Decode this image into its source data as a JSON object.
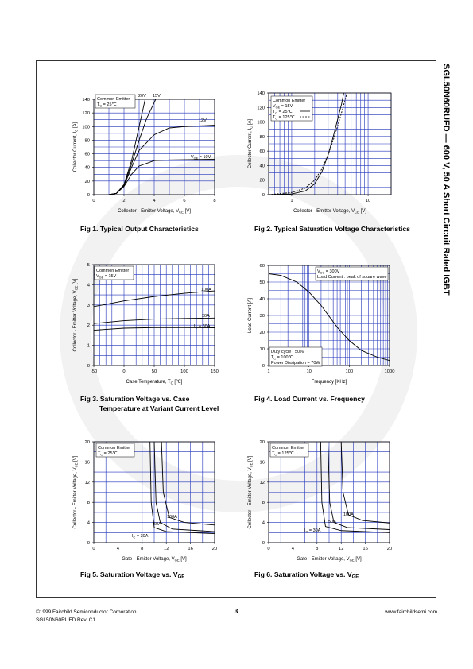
{
  "header": {
    "side_title": "SGL50N60RUFD — 600 V, 50 A Short Circuit Rated IGBT"
  },
  "figures": [
    {
      "caption": [
        "Fig 1. Typical Output Characteristics"
      ],
      "chart": {
        "type": "line",
        "xlabel": [
          "Collector - Emitter Voltage, V",
          "CE",
          " [V]"
        ],
        "ylabel": [
          "Collector Current, I",
          "C",
          " [A]"
        ],
        "xlim": [
          0,
          8
        ],
        "ylim": [
          0,
          140
        ],
        "xticks": [
          0,
          2,
          4,
          6,
          8
        ],
        "yticks": [
          0,
          20,
          40,
          60,
          80,
          100,
          120,
          140
        ],
        "xgrid": [
          0,
          1,
          2,
          3,
          4,
          5,
          6,
          7,
          8
        ],
        "ygrid": [
          0,
          10,
          20,
          30,
          40,
          50,
          60,
          70,
          80,
          90,
          100,
          110,
          120,
          130,
          140
        ],
        "grid_color": "#2233bb",
        "notes": [
          [
            "Common Emitter",
            [
              "T",
              "C",
              " = 25℃"
            ]
          ]
        ],
        "series": [
          {
            "name": "20V",
            "color": "#000000",
            "x": [
              1,
              1.5,
              2,
              2.5,
              3,
              3.4
            ],
            "values": [
              0,
              2,
              15,
              50,
              100,
              140
            ]
          },
          {
            "name": "15V",
            "color": "#000000",
            "x": [
              1,
              1.5,
              2,
              2.5,
              3,
              3.5,
              4.1
            ],
            "values": [
              0,
              2,
              14,
              45,
              80,
              112,
              140
            ]
          },
          {
            "name": "12V",
            "color": "#000000",
            "x": [
              1,
              1.5,
              2,
              2.5,
              3,
              4,
              5,
              6,
              8
            ],
            "values": [
              0,
              2,
              13,
              40,
              65,
              88,
              98,
              100,
              102
            ]
          },
          {
            "name": [
              "V",
              "GE",
              " = 10V"
            ],
            "color": "#000000",
            "x": [
              1,
              1.5,
              2,
              2.5,
              3,
              4,
              5,
              8
            ],
            "values": [
              0,
              2,
              12,
              30,
              42,
              50,
              51,
              52
            ]
          }
        ]
      }
    },
    {
      "caption": [
        "Fig 2. Typical Saturation Voltage Characteristics"
      ],
      "chart": {
        "type": "line",
        "xlog": true,
        "xlabel": [
          "Collector - Emitter Voltage, V",
          "CE",
          " [V]"
        ],
        "ylabel": [
          "Collector Current, I",
          "C",
          " [A]"
        ],
        "xlim": [
          0.5,
          20
        ],
        "ylim": [
          0,
          140
        ],
        "xticks": [
          1,
          10
        ],
        "yticks": [
          0,
          20,
          40,
          60,
          80,
          100,
          120,
          140
        ],
        "xgrid": [
          0.5,
          0.6,
          0.7,
          0.8,
          0.9,
          1,
          2,
          3,
          4,
          5,
          6,
          7,
          8,
          9,
          10,
          20
        ],
        "ygrid": [
          0,
          10,
          20,
          30,
          40,
          50,
          60,
          70,
          80,
          90,
          100,
          110,
          120,
          130,
          140
        ],
        "grid_color": "#2233bb",
        "notes": [
          [
            "Common Emitter",
            [
              "V",
              "GE",
              " = 15V"
            ],
            [
              "T",
              "C",
              " = 25℃"
            ],
            [
              "T",
              "C",
              " = 125℃"
            ]
          ]
        ],
        "series": [
          {
            "color": "#000000",
            "dash": false,
            "x": [
              0.5,
              1,
              1.5,
              2,
              2.5,
              3,
              3.5,
              4,
              4.5,
              4.8
            ],
            "values": [
              0,
              1,
              5,
              15,
              32,
              55,
              80,
              104,
              125,
              140
            ]
          },
          {
            "color": "#000000",
            "dash": true,
            "x": [
              0.5,
              1,
              1.5,
              2,
              2.5,
              3,
              3.5,
              4,
              4.5,
              5.3
            ],
            "values": [
              0,
              3,
              9,
              20,
              36,
              55,
              75,
              95,
              113,
              140
            ]
          }
        ]
      }
    },
    {
      "caption": [
        "Fig 3. Saturation Voltage vs. Case",
        "Temperature at Variant Current Level"
      ],
      "chart": {
        "type": "line",
        "xlabel": [
          "Case Temperature, T",
          "C",
          " [℃]"
        ],
        "ylabel": [
          "Collector - Emitter Voltage, V",
          "CE",
          " [V]"
        ],
        "xlim": [
          -50,
          150
        ],
        "ylim": [
          0,
          5
        ],
        "xticks": [
          -50,
          0,
          50,
          100,
          150
        ],
        "yticks": [
          0,
          1,
          2,
          3,
          4,
          5
        ],
        "xgrid": [
          -50,
          -40,
          -30,
          -20,
          -10,
          0,
          10,
          20,
          30,
          40,
          50,
          60,
          70,
          80,
          90,
          100,
          110,
          120,
          130,
          140,
          150
        ],
        "ygrid": [
          0,
          0.5,
          1,
          1.5,
          2,
          2.5,
          3,
          3.5,
          4,
          4.5,
          5
        ],
        "grid_color": "#2233bb",
        "notes": [
          [
            "Common Emitter",
            [
              "V",
              "GE",
              " = 15V"
            ]
          ]
        ],
        "series": [
          {
            "name": "100A",
            "color": "#000000",
            "x": [
              -50,
              0,
              50,
              100,
              150
            ],
            "values": [
              2.92,
              3.2,
              3.42,
              3.58,
              3.7
            ]
          },
          {
            "name": "50A",
            "color": "#000000",
            "x": [
              -50,
              0,
              50,
              100,
              150
            ],
            "values": [
              2.08,
              2.22,
              2.3,
              2.33,
              2.35
            ]
          },
          {
            "name": [
              "I",
              "C",
              " = 30A"
            ],
            "color": "#000000",
            "x": [
              -50,
              0,
              50,
              100,
              150
            ],
            "values": [
              1.75,
              1.85,
              1.88,
              1.88,
              1.87
            ]
          }
        ]
      }
    },
    {
      "caption": [
        "Fig 4. Load Current vs. Frequency"
      ],
      "chart": {
        "type": "line",
        "xlog": true,
        "xlabel": [
          "Frequency [KHz]"
        ],
        "ylabel": [
          "Load Current [A]"
        ],
        "xlim": [
          1,
          1000
        ],
        "ylim": [
          0,
          60
        ],
        "xticks": [
          1,
          10,
          100,
          1000
        ],
        "yticks": [
          0,
          10,
          20,
          30,
          40,
          50,
          60
        ],
        "xgrid": [
          1,
          2,
          3,
          4,
          5,
          6,
          7,
          8,
          9,
          10,
          20,
          30,
          40,
          50,
          60,
          70,
          80,
          90,
          100,
          200,
          300,
          400,
          500,
          600,
          700,
          800,
          900,
          1000
        ],
        "ygrid": [
          0,
          5,
          10,
          15,
          20,
          25,
          30,
          35,
          40,
          45,
          50,
          55,
          60
        ],
        "grid_color": "#2233bb",
        "notes": [
          [
            [
              "V",
              "CC",
              " = 300V"
            ],
            "Load Current : peak of square wave"
          ],
          [
            "Duty cycle : 50%",
            [
              "T",
              "C",
              " = 100℃"
            ],
            "Power Dissipation = 70W"
          ]
        ],
        "series": [
          {
            "color": "#000000",
            "x": [
              1,
              2,
              5,
              10,
              20,
              50,
              100,
              200,
              500,
              1000
            ],
            "values": [
              55,
              54,
              50,
              44,
              36,
              23,
              15,
              9,
              5,
              3
            ]
          }
        ]
      }
    },
    {
      "caption": [
        [
          "Fig 5. Saturation Voltage vs. V",
          "GE"
        ]
      ],
      "chart": {
        "type": "line",
        "xlabel": [
          "Gate - Emitter Voltage, V",
          "GE",
          " [V]"
        ],
        "ylabel": [
          "Collector - Emitter Voltage, V",
          "CE",
          " [V]"
        ],
        "xlim": [
          0,
          20
        ],
        "ylim": [
          0,
          20
        ],
        "xticks": [
          0,
          4,
          8,
          12,
          16,
          20
        ],
        "yticks": [
          0,
          4,
          8,
          12,
          16,
          20
        ],
        "xgrid": [
          0,
          2,
          4,
          6,
          8,
          10,
          12,
          14,
          16,
          18,
          20
        ],
        "ygrid": [
          0,
          2,
          4,
          6,
          8,
          10,
          12,
          14,
          16,
          18,
          20
        ],
        "grid_color": "#2233bb",
        "notes": [
          [
            "Common Emitter",
            [
              "T",
              "C",
              " = 25℃"
            ]
          ]
        ],
        "series": [
          {
            "name": "100A",
            "color": "#000000",
            "x": [
              11.2,
              11.5,
              12.5,
              15,
              20
            ],
            "values": [
              20,
              10,
              5,
              4,
              3.5
            ]
          },
          {
            "name": "50A",
            "color": "#000000",
            "x": [
              10,
              10.3,
              11,
              13,
              20
            ],
            "values": [
              20,
              8,
              4,
              2.7,
              2.2
            ]
          },
          {
            "name": [
              "I",
              "C",
              " = 30A"
            ],
            "color": "#000000",
            "x": [
              9.3,
              9.5,
              10,
              12,
              20
            ],
            "values": [
              20,
              8,
              3,
              2.2,
              1.8
            ]
          }
        ]
      }
    },
    {
      "caption": [
        [
          "Fig 6. Saturation Voltage vs. V",
          "GE"
        ]
      ],
      "chart": {
        "type": "line",
        "xlabel": [
          "Gate - Emitter Voltage, V",
          "GE",
          " [V]"
        ],
        "ylabel": [
          "Collector - Emitter Voltage, V",
          "CE",
          " [V]"
        ],
        "xlim": [
          0,
          20
        ],
        "ylim": [
          0,
          20
        ],
        "xticks": [
          0,
          4,
          8,
          12,
          16,
          20
        ],
        "yticks": [
          0,
          4,
          8,
          12,
          16,
          20
        ],
        "xgrid": [
          0,
          2,
          4,
          6,
          8,
          10,
          12,
          14,
          16,
          18,
          20
        ],
        "ygrid": [
          0,
          2,
          4,
          6,
          8,
          10,
          12,
          14,
          16,
          18,
          20
        ],
        "grid_color": "#2233bb",
        "notes": [
          [
            "Common Emitter",
            [
              "T",
              "C",
              " = 125℃"
            ]
          ]
        ],
        "series": [
          {
            "name": "100A",
            "color": "#000000",
            "x": [
              12,
              12.3,
              13.2,
              15.5,
              20
            ],
            "values": [
              20,
              10,
              5.5,
              4.4,
              3.9
            ]
          },
          {
            "name": "50A",
            "color": "#000000",
            "x": [
              9.8,
              10.1,
              10.8,
              13,
              20
            ],
            "values": [
              20,
              8,
              4,
              3,
              2.6
            ]
          },
          {
            "name": [
              "I",
              "C",
              " = 30A"
            ],
            "color": "#000000",
            "x": [
              8.6,
              8.8,
              9.4,
              12,
              20
            ],
            "values": [
              20,
              8,
              3.2,
              2.4,
              2
            ]
          }
        ]
      }
    }
  ],
  "footer": {
    "copyright": "©1999 Fairchild Semiconductor Corporation",
    "revision": "SGL50N60RUFD Rev. C1",
    "page": "3",
    "url": "www.fairchildsemi.com"
  }
}
